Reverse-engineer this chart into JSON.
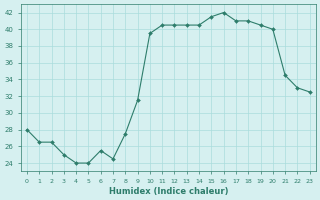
{
  "x": [
    0,
    1,
    2,
    3,
    4,
    5,
    6,
    7,
    8,
    9,
    10,
    11,
    12,
    13,
    14,
    15,
    16,
    17,
    18,
    19,
    20,
    21,
    22,
    23
  ],
  "y": [
    28,
    26.5,
    26.5,
    25,
    24,
    24,
    25.5,
    24.5,
    27.5,
    31.5,
    39.5,
    40.5,
    40.5,
    40.5,
    40.5,
    41.5,
    42,
    41,
    41,
    40.5,
    40,
    34.5,
    33,
    32.5
  ],
  "xlabel": "Humidex (Indice chaleur)",
  "ylim": [
    23,
    43
  ],
  "xlim": [
    -0.5,
    23.5
  ],
  "yticks": [
    24,
    26,
    28,
    30,
    32,
    34,
    36,
    38,
    40,
    42
  ],
  "xticks": [
    0,
    1,
    2,
    3,
    4,
    5,
    6,
    7,
    8,
    9,
    10,
    11,
    12,
    13,
    14,
    15,
    16,
    17,
    18,
    19,
    20,
    21,
    22,
    23
  ],
  "line_color": "#2E7D6B",
  "marker_color": "#2E7D6B",
  "bg_color": "#D6F0F0",
  "grid_color": "#AADDDD",
  "axes_color": "#2E7D6B"
}
